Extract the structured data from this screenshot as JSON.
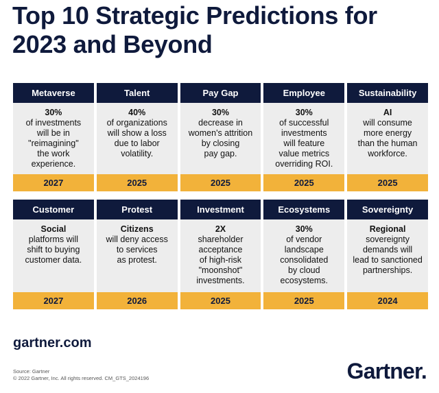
{
  "title": "Top 10 Strategic Predictions for 2023 and Beyond",
  "rows": [
    [
      {
        "header": "Metaverse",
        "lead": "30%",
        "text": "of investments\nwill be in\n\"reimagining\"\nthe work\nexperience.",
        "year": "2027"
      },
      {
        "header": "Talent",
        "lead": "40%",
        "text": "of organizations\nwill show a loss\ndue to labor\nvolatility.",
        "year": "2025"
      },
      {
        "header": "Pay Gap",
        "lead": "30%",
        "text": "decrease in\nwomen's attrition\nby closing\npay gap.",
        "year": "2025"
      },
      {
        "header": "Employee",
        "lead": "30%",
        "text": "of successful\ninvestments\nwill feature\nvalue metrics\noverriding ROI.",
        "year": "2025"
      },
      {
        "header": "Sustainability",
        "lead": "AI",
        "text": "will consume\nmore energy\nthan the human\nworkforce.",
        "year": "2025"
      }
    ],
    [
      {
        "header": "Customer",
        "lead": "Social",
        "text": "platforms will\nshift to buying\ncustomer data.",
        "year": "2027"
      },
      {
        "header": "Protest",
        "lead": "Citizens",
        "text": "will deny access\nto services\nas protest.",
        "year": "2026"
      },
      {
        "header": "Investment",
        "lead": "2X",
        "text": "shareholder\nacceptance\nof high-risk\n\"moonshot\"\ninvestments.",
        "year": "2025"
      },
      {
        "header": "Ecosystems",
        "lead": "30%",
        "text": "of vendor\nlandscape\nconsolidated\nby cloud\necosystems.",
        "year": "2025"
      },
      {
        "header": "Sovereignty",
        "lead": "Regional",
        "text": "sovereignty\ndemands will\nlead to sanctioned\npartnerships.",
        "year": "2024"
      }
    ]
  ],
  "website": "gartner.com",
  "source_line": "Source: Gartner",
  "copyright_line": "© 2022 Gartner, Inc. All rights reserved. CM_GTS_2024196",
  "logo": "Gartner."
}
